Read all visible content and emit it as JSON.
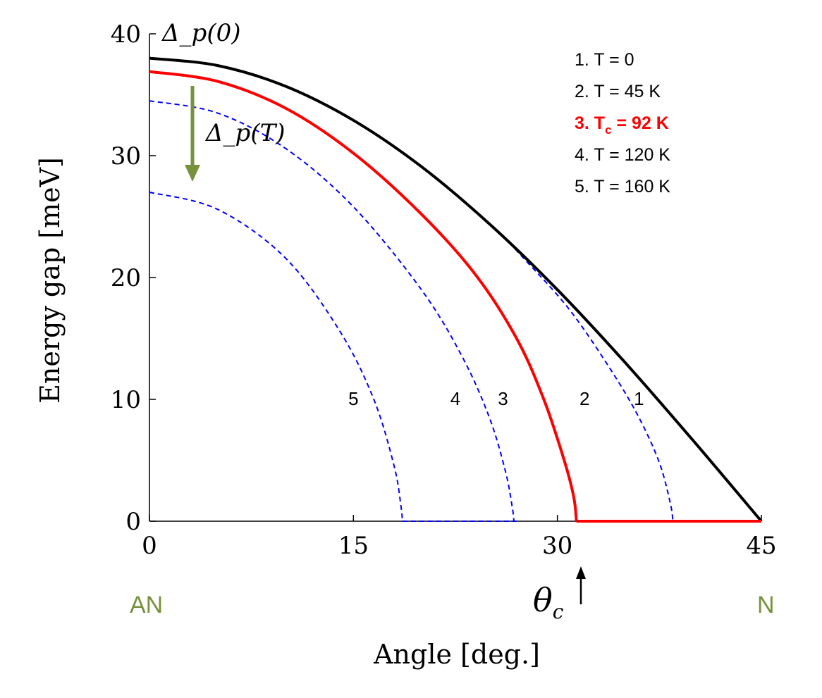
{
  "chart_data": {
    "type": "line",
    "title": "",
    "xlabel": "Angle [deg.]",
    "ylabel": "Energy gap  [meV]",
    "xlim": [
      0,
      45
    ],
    "ylim": [
      0,
      40
    ],
    "xticks": [
      0,
      15,
      30,
      45
    ],
    "yticks": [
      0,
      10,
      20,
      30,
      40
    ],
    "grid": false,
    "legend_position": "top-right",
    "legend": [
      {
        "text": "1. T = 0",
        "color": "#000000"
      },
      {
        "text": "2. T = 45 K",
        "color": "#000000"
      },
      {
        "text_main": "3. T",
        "text_sub": "c",
        "text_tail": " = 92 K",
        "color": "#ff0000"
      },
      {
        "text": "4. T = 120 K",
        "color": "#000000"
      },
      {
        "text": "5. T = 160 K",
        "color": "#000000"
      }
    ],
    "series": [
      {
        "label": "1",
        "style": "solid",
        "color": "#000000",
        "x": [
          0,
          5,
          10,
          15,
          20,
          25,
          30,
          35,
          40,
          45
        ],
        "y": [
          38.0,
          37.4,
          35.7,
          32.9,
          29.1,
          24.4,
          19.0,
          13.0,
          6.6,
          0.0
        ]
      },
      {
        "label": "2",
        "style": "dashed",
        "color": "#0000ff",
        "x": [
          0,
          5,
          10,
          15,
          20,
          25,
          28,
          31,
          34,
          36,
          37.5,
          38.3,
          38.5,
          45
        ],
        "y": [
          38.0,
          37.4,
          35.7,
          32.9,
          29.1,
          24.4,
          21.0,
          17.2,
          12.3,
          8.5,
          4.8,
          1.5,
          0.0,
          0.0
        ]
      },
      {
        "label": "3",
        "style": "solid",
        "color": "#ff0000",
        "x": [
          0,
          5,
          10,
          15,
          20,
          24,
          27,
          29,
          30.5,
          31.2,
          31.4,
          45
        ],
        "y": [
          36.9,
          36.1,
          33.9,
          30.2,
          25.2,
          20.2,
          15.0,
          10.0,
          5.0,
          2.0,
          0.0,
          0.0
        ]
      },
      {
        "label": "4",
        "style": "dashed",
        "color": "#0000ff",
        "x": [
          0,
          5,
          10,
          15,
          20,
          23,
          25,
          26.2,
          26.7,
          26.8
        ],
        "y": [
          34.5,
          33.5,
          30.6,
          25.8,
          19.0,
          13.5,
          8.5,
          4.0,
          1.0,
          0.0
        ]
      },
      {
        "label": "5",
        "style": "dashed",
        "color": "#0000ff",
        "x": [
          0,
          5,
          10,
          14,
          16.5,
          18.0,
          18.5,
          18.6,
          27
        ],
        "y": [
          27.0,
          25.6,
          21.6,
          15.6,
          10.0,
          4.5,
          1.2,
          0.0,
          0.0
        ]
      }
    ],
    "annotations": {
      "delta0": "Δ_p(0)",
      "deltaT": "Δ_p(T)",
      "theta": "θ",
      "theta_sub": "c",
      "an": "AN",
      "n": "N",
      "theta_c_value": 31.4
    }
  }
}
